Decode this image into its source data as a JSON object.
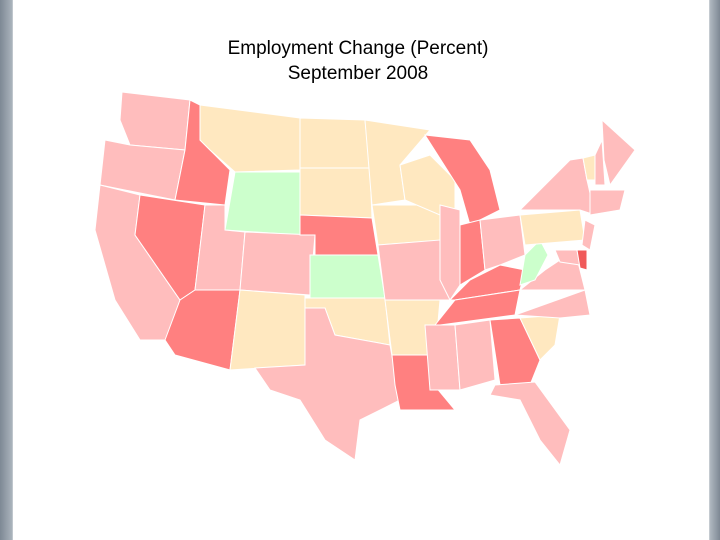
{
  "header": {
    "title": "Employment Change (Percent)",
    "subtitle": "September 2008"
  }
}
